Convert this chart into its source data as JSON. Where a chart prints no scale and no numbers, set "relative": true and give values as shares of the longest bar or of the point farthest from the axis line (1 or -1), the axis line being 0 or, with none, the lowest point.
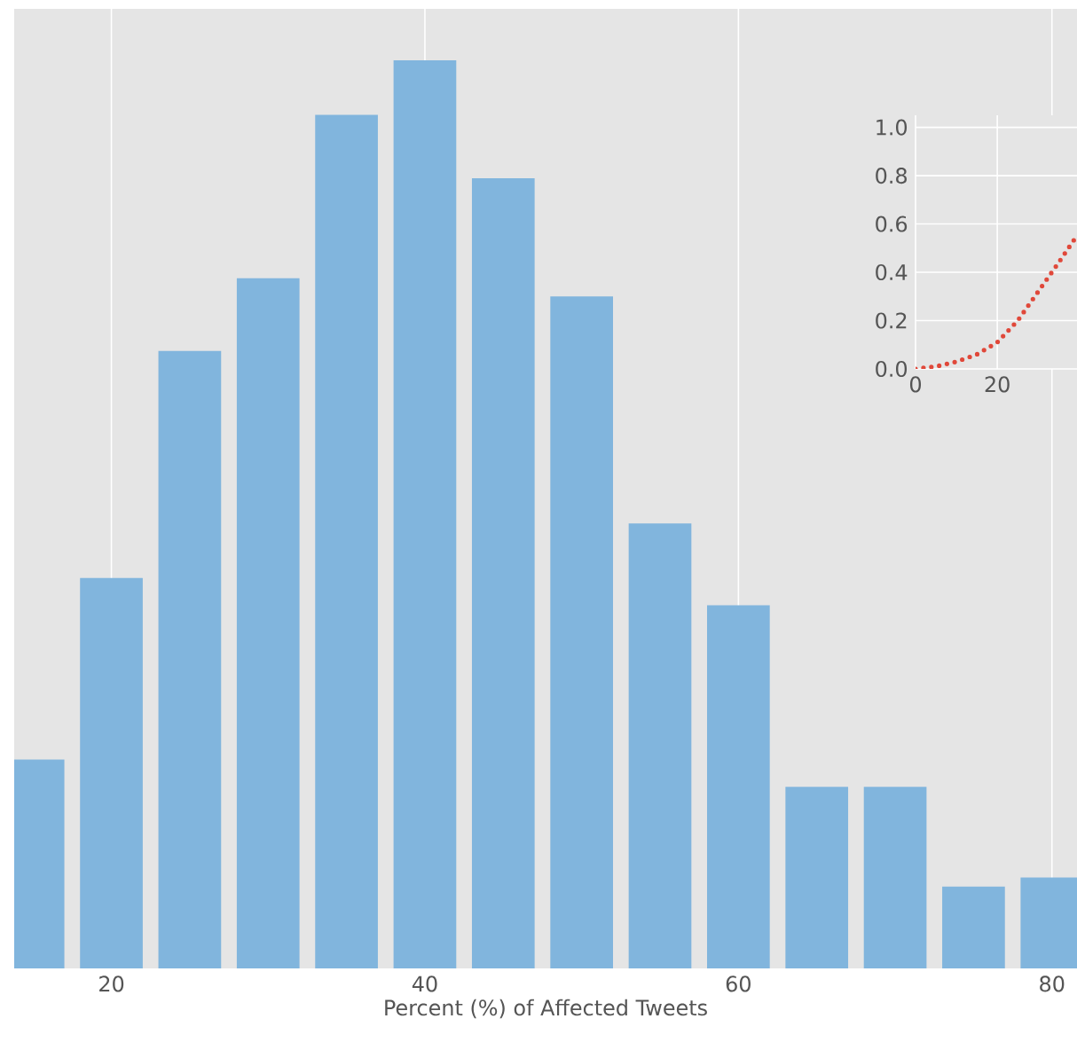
{
  "chart_data": [
    {
      "type": "bar",
      "relative": true,
      "xlabel": "Percent (%) of Affected Tweets",
      "x": [
        15,
        20,
        25,
        30,
        35,
        40,
        45,
        50,
        55,
        60,
        65,
        70,
        75,
        80
      ],
      "values": [
        0.23,
        0.43,
        0.68,
        0.76,
        0.94,
        1,
        0.87,
        0.74,
        0.49,
        0.4,
        0.2,
        0.2,
        0.09,
        0.1
      ],
      "color": "#81b5dd",
      "xlim": [
        13.8,
        81.6
      ],
      "xticks": [
        20,
        40,
        60,
        80
      ],
      "grid": "x"
    },
    {
      "type": "line",
      "x": [
        0,
        5,
        10,
        15,
        20,
        25,
        30,
        35,
        39
      ],
      "values": [
        0.0,
        0.01,
        0.03,
        0.06,
        0.11,
        0.2,
        0.32,
        0.44,
        0.54
      ],
      "color": "#e0483a",
      "line_style": "dotted",
      "xlim": [
        0,
        39.5
      ],
      "ylim": [
        0,
        1.05
      ],
      "xticks": [
        0,
        20
      ],
      "yticks": [
        {
          "value": 0,
          "label": "0.0"
        },
        0.2,
        0.4,
        0.6,
        0.8,
        {
          "value": 1,
          "label": "1.0"
        }
      ],
      "grid": true
    }
  ]
}
